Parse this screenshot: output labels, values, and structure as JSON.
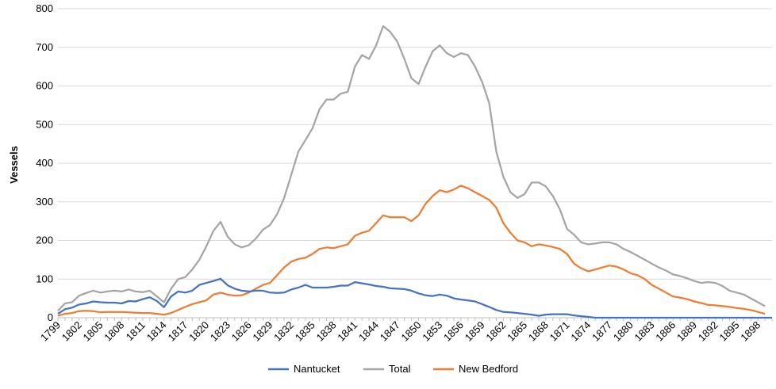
{
  "chart_data": {
    "type": "line",
    "title": "",
    "xlabel": "",
    "ylabel": "Vessels",
    "ylim": [
      0,
      800
    ],
    "yticks": [
      0,
      100,
      200,
      300,
      400,
      500,
      600,
      700,
      800
    ],
    "grid": "horizontal",
    "legend_position": "bottom",
    "x_start": 1799,
    "x_end": 1900,
    "xtick_labels": [
      "1799",
      "1802",
      "1805",
      "1808",
      "1811",
      "1814",
      "1817",
      "1820",
      "1823",
      "1826",
      "1829",
      "1832",
      "1835",
      "1838",
      "1841",
      "1844",
      "1847",
      "1850",
      "1853",
      "1856",
      "1859",
      "1862",
      "1865",
      "1868",
      "1871",
      "1874",
      "1877",
      "1880",
      "1883",
      "1886",
      "1889",
      "1892",
      "1895",
      "1898"
    ],
    "series": [
      {
        "name": "Nantucket",
        "color": "#4472C4",
        "values": [
          10,
          22,
          26,
          34,
          37,
          42,
          40,
          39,
          39,
          37,
          43,
          42,
          48,
          53,
          43,
          27,
          55,
          68,
          65,
          70,
          85,
          90,
          95,
          101,
          84,
          75,
          70,
          68,
          70,
          70,
          65,
          64,
          65,
          73,
          78,
          85,
          78,
          78,
          78,
          80,
          83,
          83,
          92,
          89,
          86,
          82,
          80,
          76,
          75,
          74,
          70,
          63,
          58,
          56,
          60,
          57,
          50,
          47,
          45,
          42,
          35,
          28,
          20,
          15,
          14,
          12,
          10,
          8,
          5,
          8,
          9,
          9,
          9,
          6,
          4,
          2,
          0,
          0,
          0,
          0,
          0,
          0,
          0,
          0,
          0,
          0,
          0,
          0,
          0,
          0,
          0,
          0,
          0,
          0,
          0,
          0,
          0,
          0,
          0,
          0,
          0,
          0
        ]
      },
      {
        "name": "Total",
        "color": "#A5A5A5",
        "values": [
          18,
          37,
          40,
          57,
          64,
          70,
          65,
          68,
          70,
          68,
          73,
          68,
          66,
          70,
          55,
          40,
          75,
          100,
          105,
          125,
          150,
          185,
          225,
          248,
          210,
          190,
          182,
          188,
          205,
          228,
          240,
          268,
          310,
          370,
          430,
          460,
          490,
          540,
          565,
          565,
          580,
          585,
          650,
          680,
          670,
          705,
          755,
          740,
          715,
          670,
          620,
          605,
          650,
          690,
          705,
          685,
          675,
          685,
          680,
          650,
          610,
          555,
          430,
          365,
          325,
          310,
          320,
          350,
          350,
          340,
          315,
          280,
          230,
          215,
          195,
          190,
          192,
          195,
          195,
          190,
          178,
          170,
          160,
          150,
          140,
          130,
          122,
          112,
          108,
          102,
          95,
          90,
          92,
          90,
          82,
          70,
          65,
          60,
          50,
          40,
          30
        ]
      },
      {
        "name": "New Bedford",
        "color": "#ED7D31",
        "values": [
          5,
          10,
          12,
          17,
          18,
          17,
          14,
          15,
          15,
          15,
          14,
          13,
          12,
          12,
          10,
          8,
          12,
          20,
          28,
          35,
          40,
          45,
          60,
          65,
          60,
          57,
          58,
          65,
          75,
          85,
          90,
          110,
          130,
          145,
          152,
          155,
          165,
          178,
          182,
          180,
          185,
          190,
          212,
          220,
          225,
          245,
          265,
          260,
          260,
          260,
          250,
          265,
          295,
          315,
          330,
          325,
          332,
          342,
          335,
          325,
          315,
          305,
          285,
          245,
          220,
          200,
          195,
          185,
          190,
          187,
          183,
          178,
          165,
          140,
          128,
          120,
          125,
          130,
          135,
          132,
          125,
          115,
          110,
          100,
          85,
          75,
          65,
          55,
          52,
          48,
          42,
          38,
          33,
          32,
          30,
          28,
          25,
          23,
          20,
          15,
          10
        ]
      }
    ]
  }
}
